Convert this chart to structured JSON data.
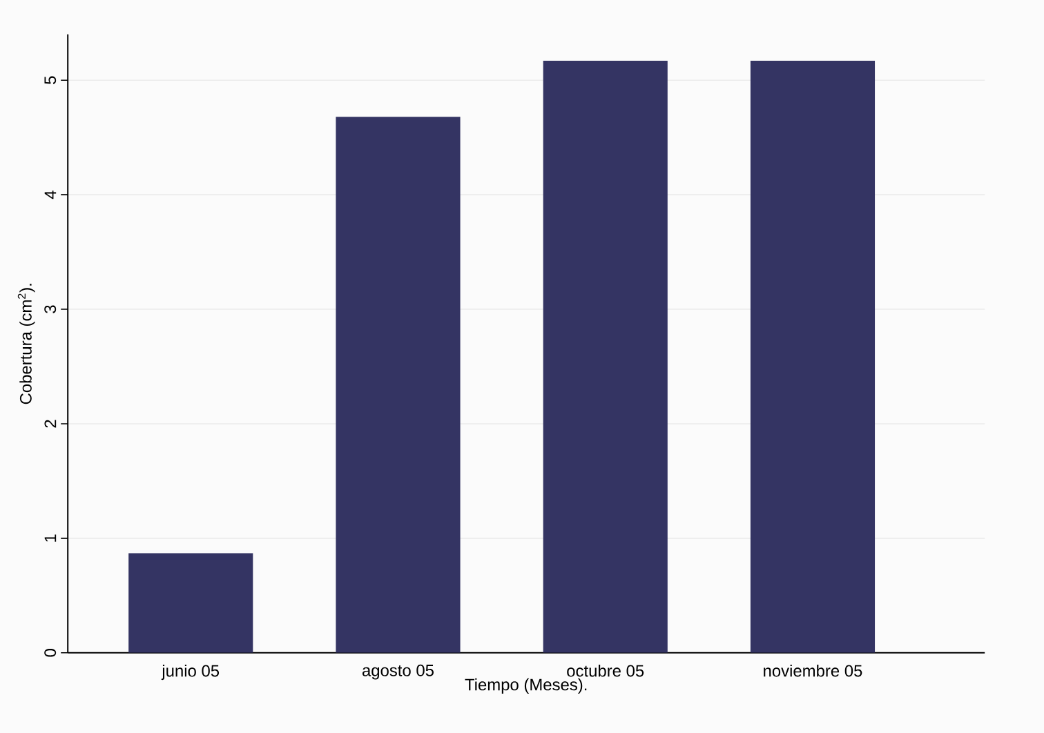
{
  "chart_data": {
    "type": "bar",
    "xlabel": "Tiempo (Meses).",
    "ylabel": "Cobertura (cm$^{2}$).",
    "categories": [
      "junio 05",
      "agosto 05",
      "octubre 05",
      "noviembre 05"
    ],
    "values": [
      0.87,
      4.68,
      5.17,
      5.17
    ],
    "color": "#343463",
    "ylim": [
      0,
      5.4
    ],
    "yticks": [
      0,
      1,
      2,
      3,
      4,
      5
    ],
    "grid": "y"
  }
}
